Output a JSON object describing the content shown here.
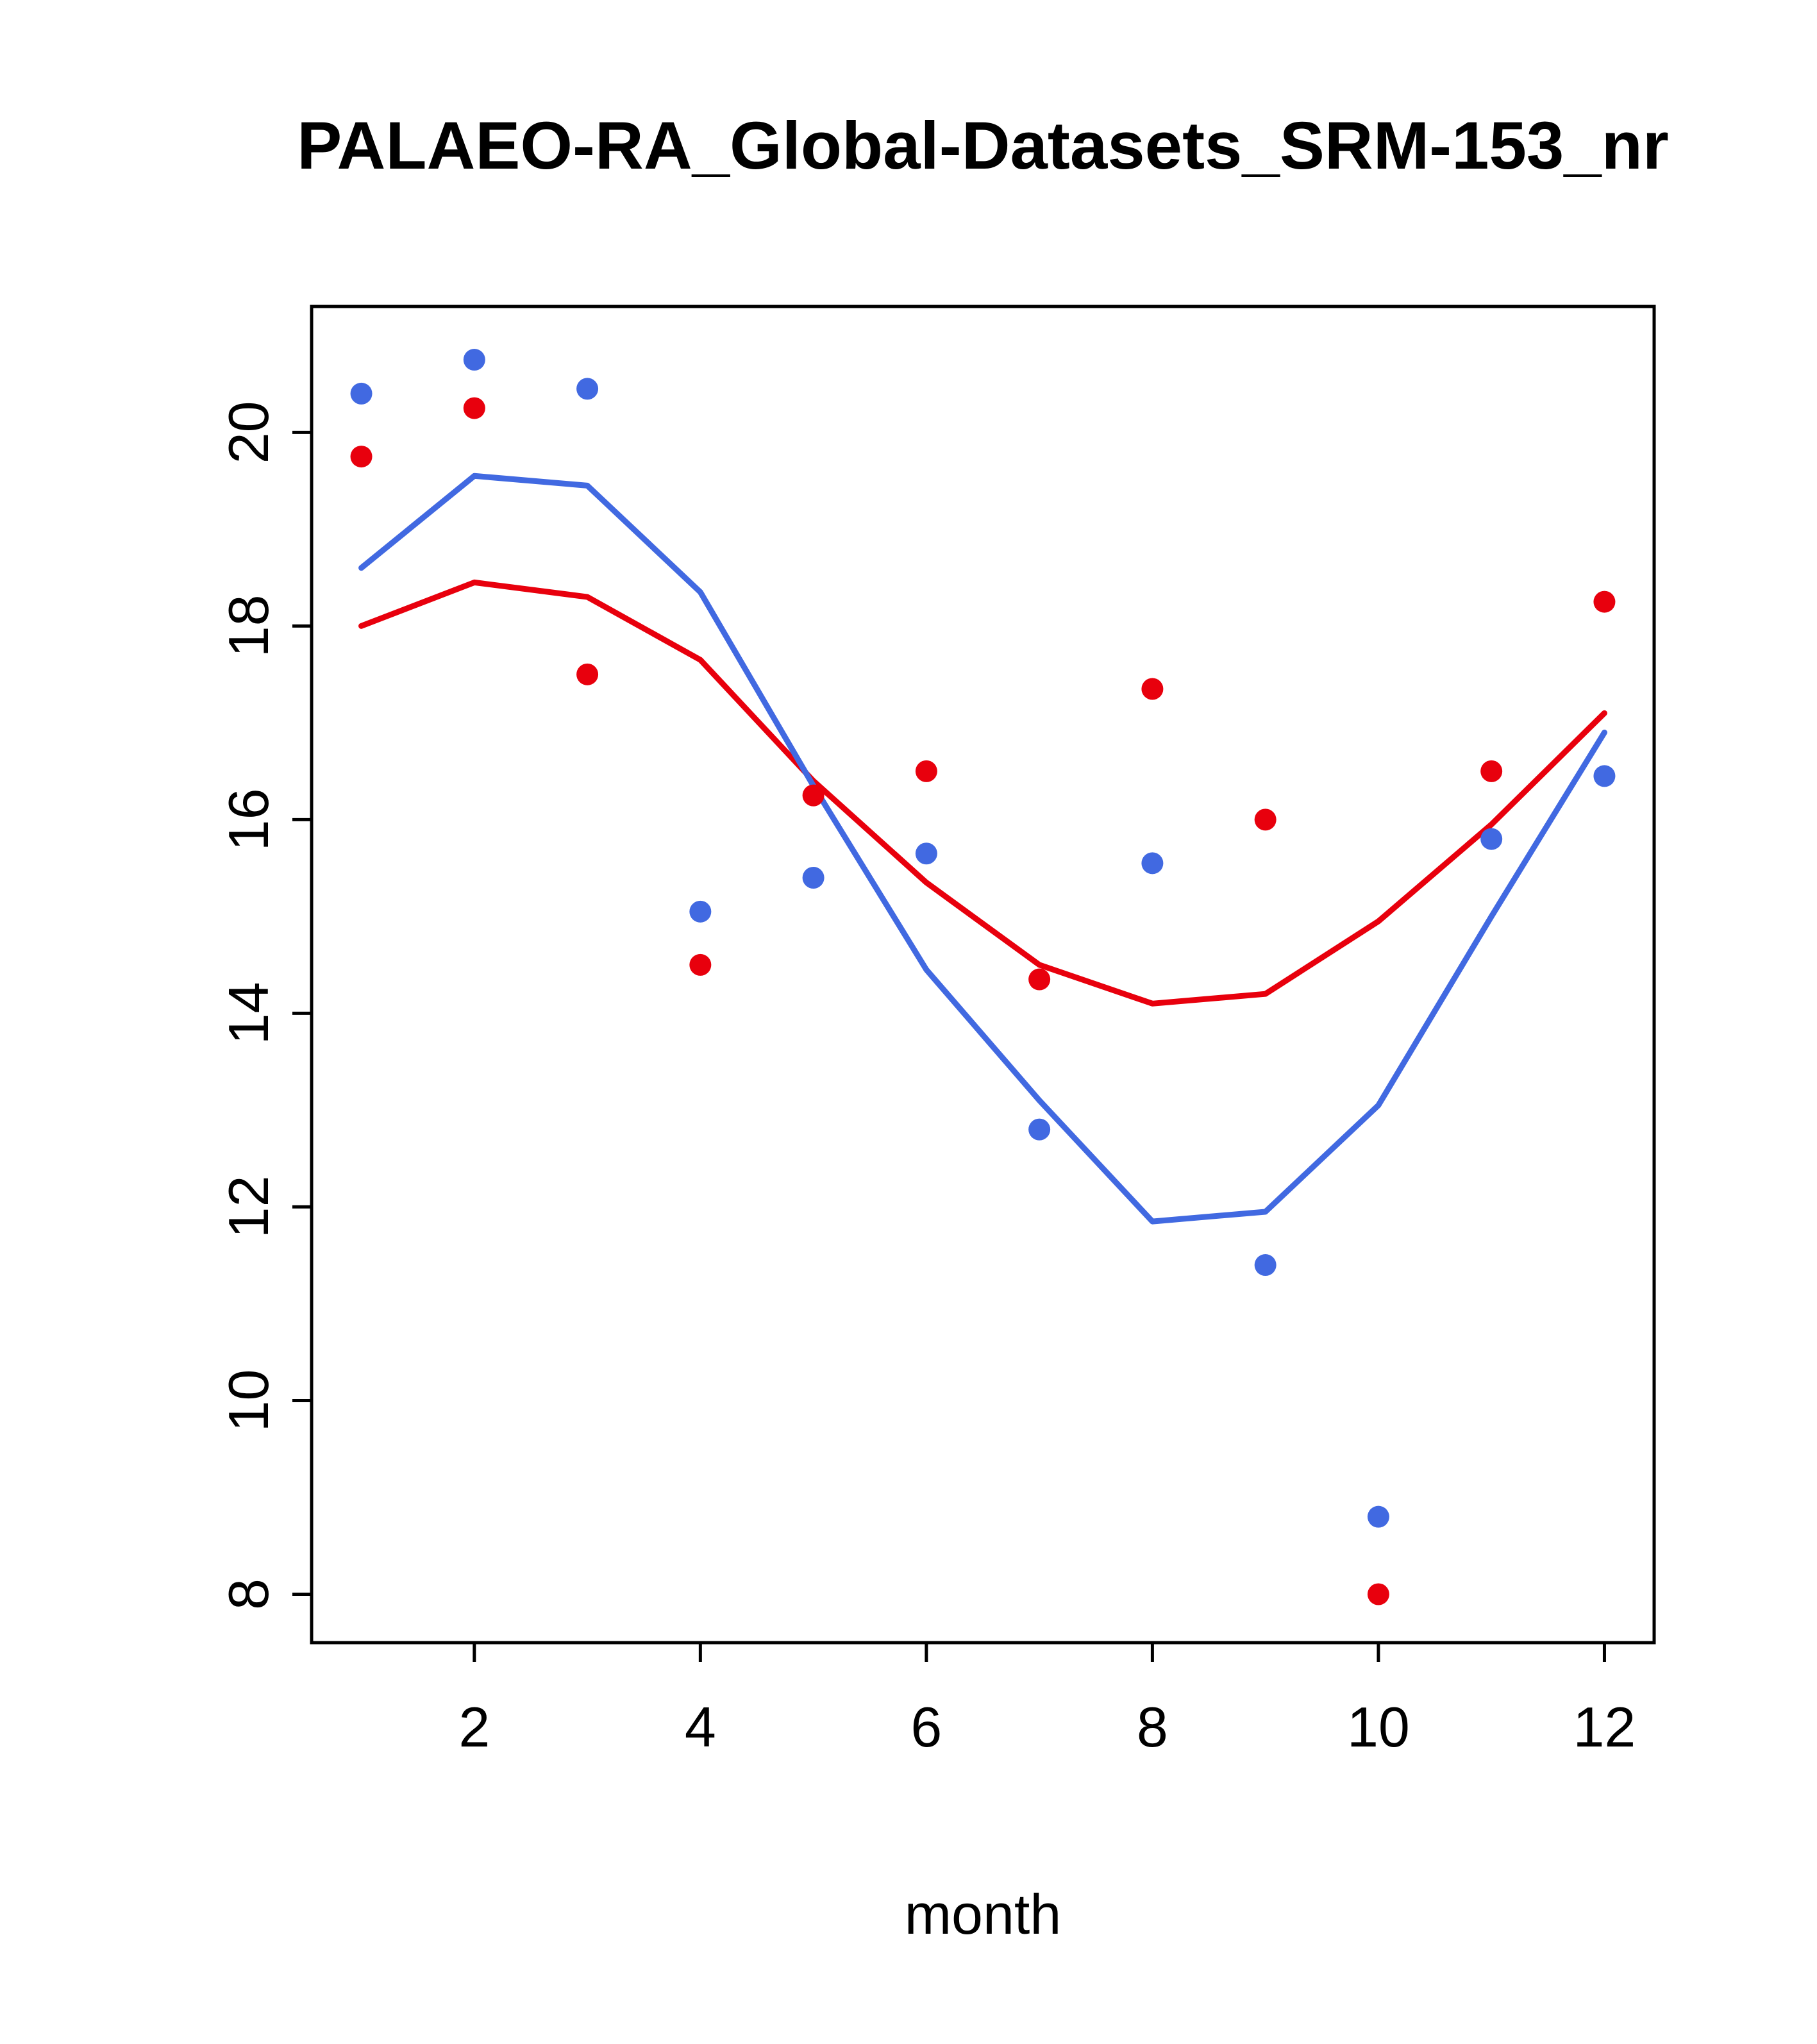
{
  "figure": {
    "background": "#ffffff"
  },
  "chart_data": {
    "type": "scatter",
    "title": "PALAEO-RA_Global-Datasets_SRM-153_nr",
    "xlabel": "month",
    "ylabel": "",
    "x": [
      1,
      2,
      3,
      4,
      5,
      6,
      7,
      8,
      9,
      10,
      11,
      12
    ],
    "xticks": [
      2,
      4,
      6,
      8,
      10,
      12
    ],
    "yticks": [
      8,
      10,
      12,
      14,
      16,
      18,
      20
    ],
    "xlim": [
      0.56,
      12.44
    ],
    "ylim": [
      7.5,
      21.3
    ],
    "grid": false,
    "legend": "none",
    "axis_color": "#000000",
    "text_color": "#000000",
    "series": [
      {
        "name": "red-smooth-line",
        "kind": "line",
        "color": "#e8000d",
        "values": [
          18.0,
          18.45,
          18.3,
          17.65,
          16.4,
          15.35,
          14.5,
          14.1,
          14.2,
          14.95,
          15.95,
          17.1
        ]
      },
      {
        "name": "blue-smooth-line",
        "kind": "line",
        "color": "#4169e1",
        "values": [
          18.6,
          19.55,
          19.45,
          18.35,
          16.35,
          14.45,
          13.1,
          11.85,
          11.95,
          13.05,
          15.0,
          16.9
        ]
      },
      {
        "name": "red-monthly-points",
        "kind": "points",
        "color": "#e8000d",
        "values": [
          19.75,
          20.25,
          17.5,
          14.5,
          16.25,
          16.5,
          14.35,
          17.35,
          16.0,
          8.0,
          16.5,
          18.25
        ]
      },
      {
        "name": "blue-monthly-points",
        "kind": "points",
        "color": "#4169e1",
        "values": [
          20.4,
          20.75,
          20.45,
          15.05,
          15.4,
          15.65,
          12.8,
          15.55,
          11.4,
          8.8,
          15.8,
          16.45
        ]
      }
    ]
  }
}
